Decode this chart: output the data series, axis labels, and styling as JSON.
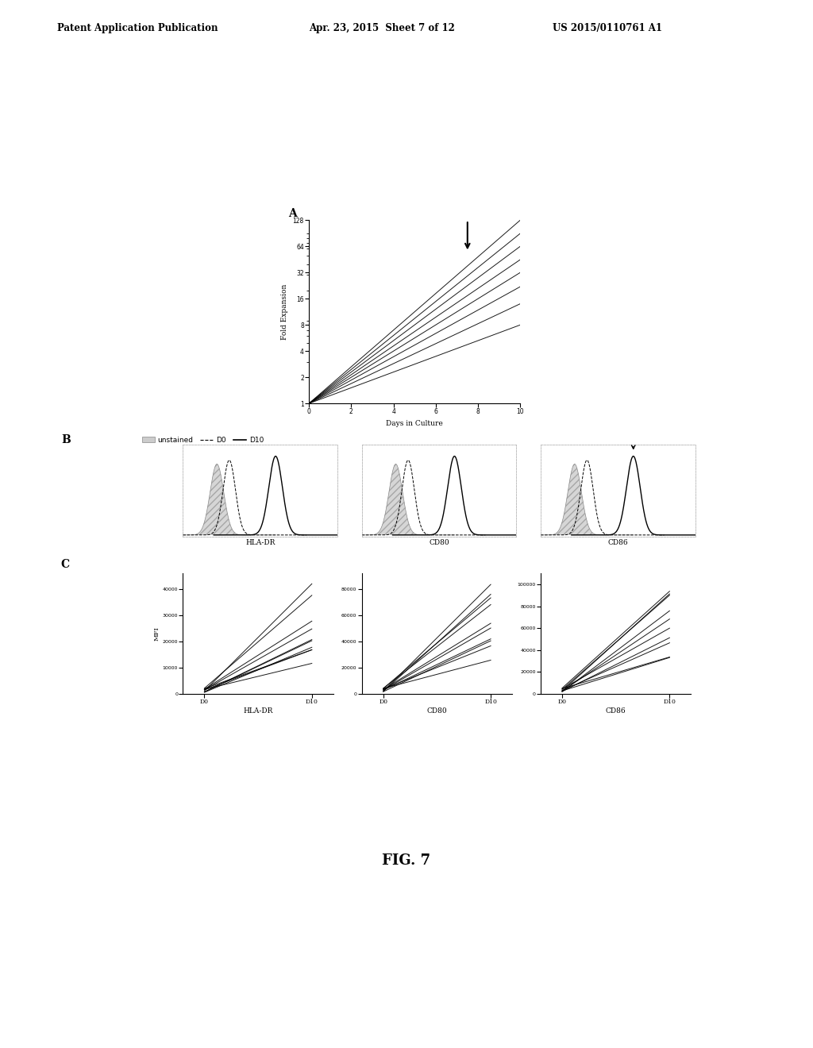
{
  "header_left": "Patent Application Publication",
  "header_mid": "Apr. 23, 2015  Sheet 7 of 12",
  "header_right": "US 2015/0110761 A1",
  "fig_label": "FIG. 7",
  "panel_A": {
    "label": "A",
    "xlabel": "Days in Culture",
    "ylabel": "Fold Expansion",
    "yticks": [
      1,
      2,
      4,
      8,
      16,
      32,
      64,
      128
    ],
    "xticks": [
      0,
      2,
      4,
      6,
      8,
      10
    ],
    "line_slopes": [
      128,
      90,
      64,
      45,
      32,
      22,
      14,
      8
    ]
  },
  "panel_B": {
    "label": "B",
    "legend_unstained": "unstained",
    "legend_D0": "D0",
    "legend_D10": "D10",
    "subpanels": [
      "HLA-DR",
      "CD80",
      "CD86"
    ]
  },
  "panel_C": {
    "label": "C",
    "ylabel": "MFI",
    "subpanels": [
      "HLA-DR",
      "CD80",
      "CD86"
    ],
    "x_labels": [
      "D0",
      "D10"
    ],
    "ytick_labels_hladr": [
      "10000",
      "20000",
      "30000",
      "40000"
    ],
    "ytick_labels_cd80": [
      "20000",
      "40000",
      "60000",
      "80000"
    ],
    "ytick_labels_cd86": [
      "20000",
      "40000",
      "60000",
      "80000",
      "100000"
    ]
  },
  "background_color": "#ffffff",
  "line_color": "#000000"
}
